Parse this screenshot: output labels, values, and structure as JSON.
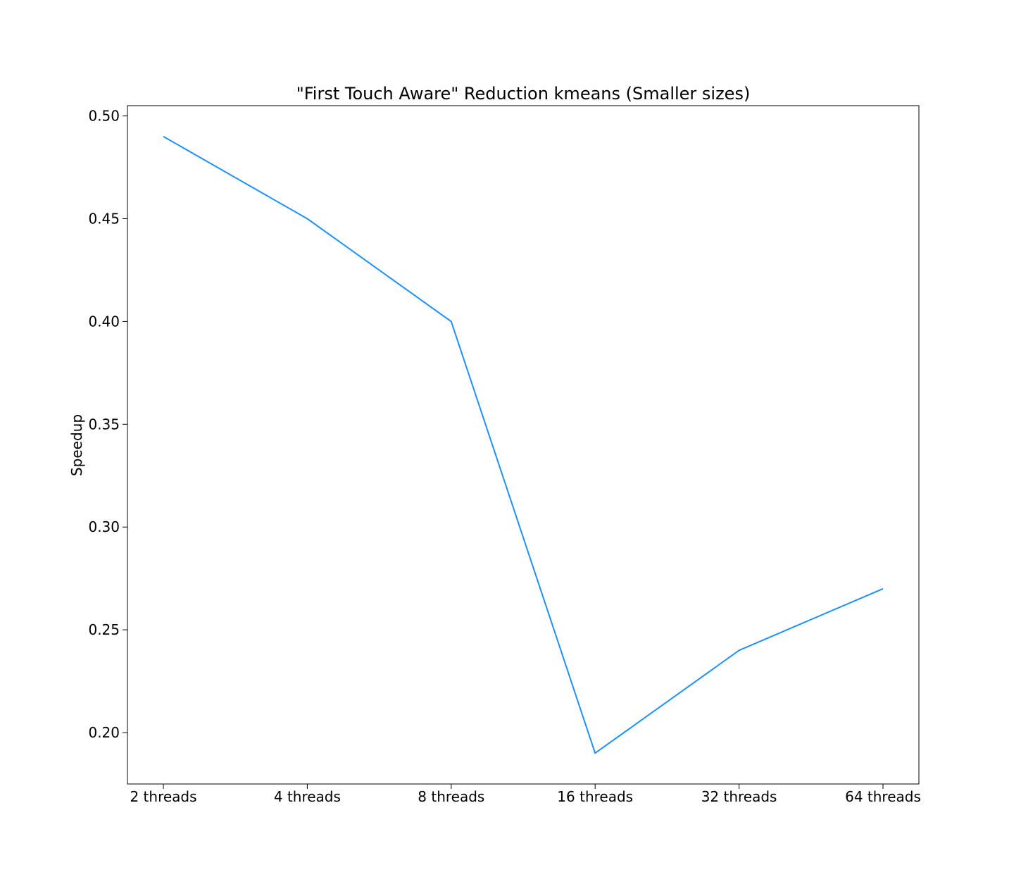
{
  "chart_data": {
    "type": "line",
    "title": "\"First Touch Aware\" Reduction kmeans (Smaller sizes)",
    "xlabel": "",
    "ylabel": "Speedup",
    "categories": [
      "2 threads",
      "4 threads",
      "8 threads",
      "16 threads",
      "32 threads",
      "64 threads"
    ],
    "series": [
      {
        "values": [
          0.49,
          0.45,
          0.4,
          0.19,
          0.24,
          0.27
        ],
        "color": "#1e90ff"
      }
    ],
    "yticks": [
      0.2,
      0.25,
      0.3,
      0.35,
      0.4,
      0.45,
      0.5
    ],
    "ytick_labels": [
      "0.20",
      "0.25",
      "0.30",
      "0.35",
      "0.40",
      "0.45",
      "0.50"
    ],
    "ylim": [
      0.175,
      0.505
    ],
    "grid": false,
    "legend": "none"
  }
}
